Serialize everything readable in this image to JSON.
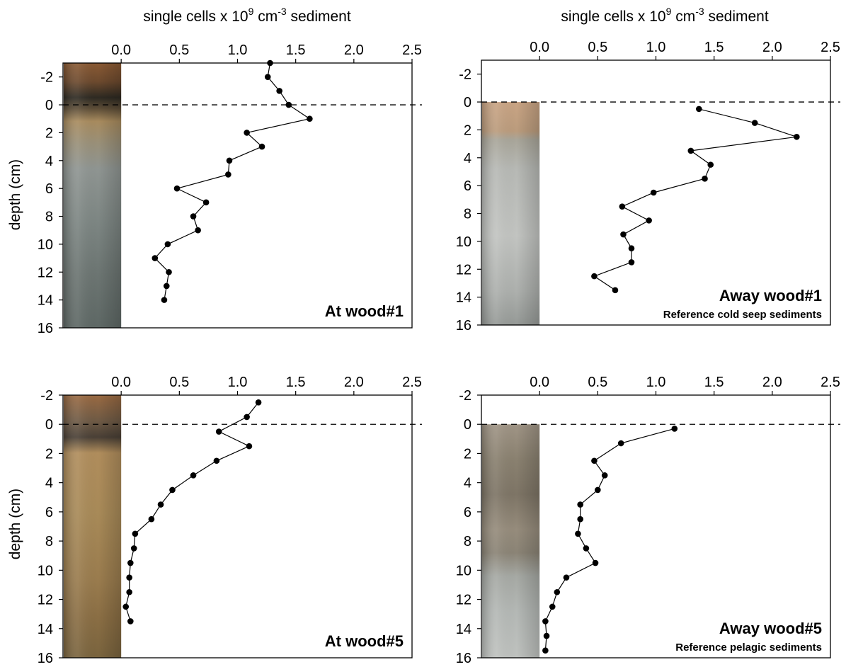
{
  "figure": {
    "top_axis_title": {
      "pre": "single  cells  x 10",
      "sup1": "9",
      "mid": " cm",
      "sup2": "-3",
      "post": " sediment"
    },
    "y_axis_title": "depth (cm)"
  },
  "colors": {
    "line": "#000000",
    "marker": "#000000",
    "dashed_line": "#000000",
    "frame": "#000000"
  },
  "chart_data": [
    {
      "type": "line",
      "panel": "top-left",
      "label": "At wood#1",
      "sublabel": "",
      "show_top_title": true,
      "show_y_title": true,
      "xlabel": "single  cells  x 10^9 cm^-3 sediment",
      "ylabel": "depth (cm)",
      "xlim": [
        -0.5,
        2.5
      ],
      "ylim": [
        -3,
        16
      ],
      "y_inverted": true,
      "xticks": [
        "0.0",
        "0.5",
        "1.0",
        "1.5",
        "2.0",
        "2.5"
      ],
      "yticks": [
        "-2",
        "0",
        "2",
        "4",
        "6",
        "8",
        "10",
        "12",
        "14",
        "16"
      ],
      "sediment_core": {
        "x_range": [
          -0.5,
          0.0
        ],
        "depth_range": [
          -3,
          16
        ],
        "style": "brown-top-grey"
      },
      "reference_line_depth": 0,
      "series": [
        {
          "x": [
            1.28,
            1.26,
            1.36,
            1.44,
            1.62,
            1.08,
            1.21,
            0.93,
            0.92,
            0.48,
            0.73,
            0.62,
            0.66,
            0.4,
            0.29,
            0.41,
            0.39,
            0.37
          ],
          "depth": [
            -3,
            -2,
            -1,
            0,
            1,
            2,
            3,
            4,
            5,
            6,
            7,
            8,
            9,
            10,
            11,
            12,
            13,
            14
          ]
        }
      ]
    },
    {
      "type": "line",
      "panel": "top-right",
      "label": "Away wood#1",
      "sublabel": "Reference cold seep sediments",
      "show_top_title": true,
      "show_y_title": false,
      "xlabel": "single  cells  x 10^9 cm^-3 sediment",
      "ylabel": "",
      "xlim": [
        -0.5,
        2.5
      ],
      "ylim": [
        -3,
        16
      ],
      "y_inverted": true,
      "xticks": [
        "0.0",
        "0.5",
        "1.0",
        "1.5",
        "2.0",
        "2.5"
      ],
      "yticks": [
        "-2",
        "0",
        "2",
        "4",
        "6",
        "8",
        "10",
        "12",
        "14",
        "16"
      ],
      "sediment_core": {
        "x_range": [
          -0.5,
          0.0
        ],
        "depth_range": [
          0,
          16
        ],
        "style": "tan-top-grey"
      },
      "reference_line_depth": 0,
      "series": [
        {
          "x": [
            1.37,
            1.85,
            2.21,
            1.3,
            1.47,
            1.42,
            0.98,
            0.71,
            0.94,
            0.72,
            0.79,
            0.79,
            0.47,
            0.65
          ],
          "depth": [
            0.5,
            1.5,
            2.5,
            3.5,
            4.5,
            5.5,
            6.5,
            7.5,
            8.5,
            9.5,
            10.5,
            11.5,
            12.5,
            13.5
          ]
        }
      ]
    },
    {
      "type": "line",
      "panel": "bottom-left",
      "label": "At wood#5",
      "sublabel": "",
      "show_top_title": false,
      "show_y_title": true,
      "xlabel": "",
      "ylabel": "depth (cm)",
      "xlim": [
        -0.5,
        2.5
      ],
      "ylim": [
        -2,
        16
      ],
      "y_inverted": true,
      "xticks": [
        "0.0",
        "0.5",
        "1.0",
        "1.5",
        "2.0",
        "2.5"
      ],
      "yticks": [
        "-2",
        "0",
        "2",
        "4",
        "6",
        "8",
        "10",
        "12",
        "14",
        "16"
      ],
      "sediment_core": {
        "x_range": [
          -0.5,
          0.0
        ],
        "depth_range": [
          -2,
          16
        ],
        "style": "brown-full"
      },
      "reference_line_depth": 0,
      "series": [
        {
          "x": [
            1.18,
            1.08,
            0.84,
            1.1,
            0.82,
            0.62,
            0.44,
            0.34,
            0.26,
            0.12,
            0.11,
            0.08,
            0.07,
            0.07,
            0.04,
            0.08
          ],
          "depth": [
            -1.5,
            -0.5,
            0.5,
            1.5,
            2.5,
            3.5,
            4.5,
            5.5,
            6.5,
            7.5,
            8.5,
            9.5,
            10.5,
            11.5,
            12.5,
            13.5
          ]
        }
      ]
    },
    {
      "type": "line",
      "panel": "bottom-right",
      "label": "Away wood#5",
      "sublabel": "Reference pelagic sediments",
      "show_top_title": false,
      "show_y_title": false,
      "xlabel": "",
      "ylabel": "",
      "xlim": [
        -0.5,
        2.5
      ],
      "ylim": [
        -2,
        16
      ],
      "y_inverted": true,
      "xticks": [
        "0.0",
        "0.5",
        "1.0",
        "1.5",
        "2.0",
        "2.5"
      ],
      "yticks": [
        "-2",
        "0",
        "2",
        "4",
        "6",
        "8",
        "10",
        "12",
        "14",
        "16"
      ],
      "sediment_core": {
        "x_range": [
          -0.5,
          0.0
        ],
        "depth_range": [
          0,
          16
        ],
        "style": "grey-banded"
      },
      "reference_line_depth": 0,
      "series": [
        {
          "x": [
            1.16,
            0.7,
            0.47,
            0.56,
            0.5,
            0.35,
            0.35,
            0.33,
            0.4,
            0.48,
            0.23,
            0.15,
            0.11,
            0.05,
            0.06,
            0.05
          ],
          "depth": [
            0.3,
            1.3,
            2.5,
            3.5,
            4.5,
            5.5,
            6.5,
            7.5,
            8.5,
            9.5,
            10.5,
            11.5,
            12.5,
            13.5,
            14.5,
            15.5
          ]
        }
      ]
    }
  ]
}
